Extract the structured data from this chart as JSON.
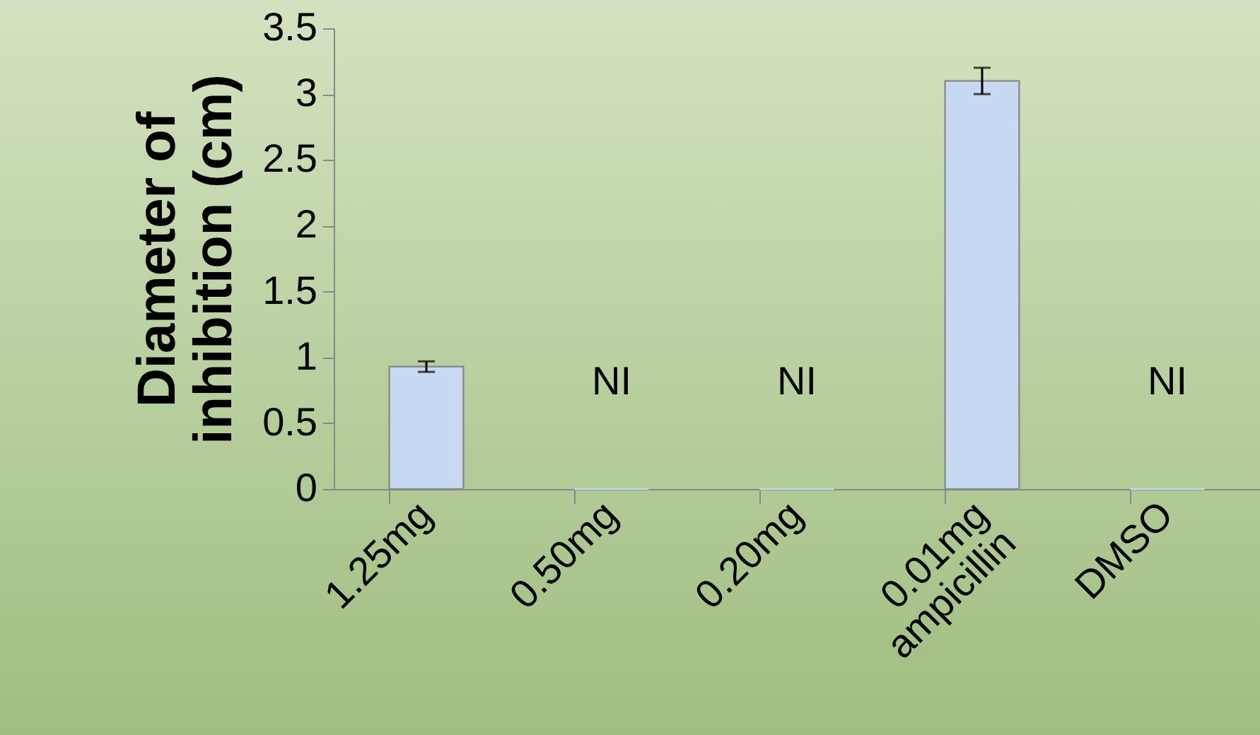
{
  "chart_data": {
    "type": "bar",
    "ylabel": "Diameter of inhibition (cm)",
    "categories": [
      "1.25mg",
      "0.50mg",
      "0.20mg",
      "0.01mg ampicillin",
      "DMSO"
    ],
    "values": [
      0.93,
      0,
      0,
      3.1,
      0
    ],
    "errors": [
      0.04,
      null,
      null,
      0.1,
      null
    ],
    "value_labels": [
      null,
      "NI",
      "NI",
      null,
      "NI"
    ],
    "color": "#c6d9f0",
    "ylim": [
      0,
      3.5
    ],
    "yticks": [
      0,
      0.5,
      1,
      1.5,
      2,
      2.5,
      3,
      3.5
    ],
    "grid": false
  }
}
